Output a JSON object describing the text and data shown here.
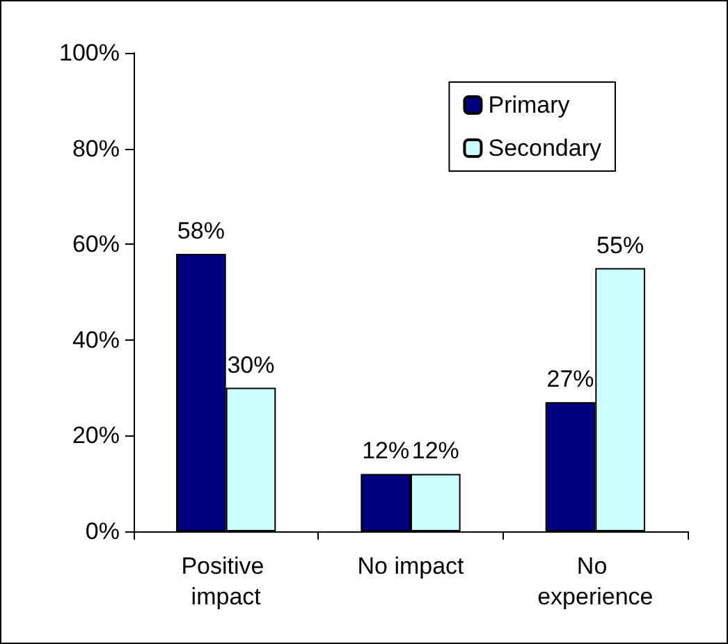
{
  "chart_data": {
    "type": "bar",
    "categories": [
      "Positive impact",
      "No impact",
      "No experience"
    ],
    "series": [
      {
        "name": "Primary",
        "color": "#000080",
        "values": [
          58,
          12,
          27
        ],
        "value_labels": [
          "58%",
          "12%",
          "27%"
        ]
      },
      {
        "name": "Secondary",
        "color": "#ccffff",
        "values": [
          30,
          12,
          55
        ],
        "value_labels": [
          "30%",
          "12%",
          "55%"
        ]
      }
    ],
    "ylim": [
      0,
      100
    ],
    "yticks": [
      {
        "value": 0,
        "label": "0%"
      },
      {
        "value": 20,
        "label": "20%"
      },
      {
        "value": 40,
        "label": "40%"
      },
      {
        "value": 60,
        "label": "60%"
      },
      {
        "value": 80,
        "label": "80%"
      },
      {
        "value": 100,
        "label": "100%"
      }
    ],
    "grid": false,
    "legend": "top right"
  }
}
